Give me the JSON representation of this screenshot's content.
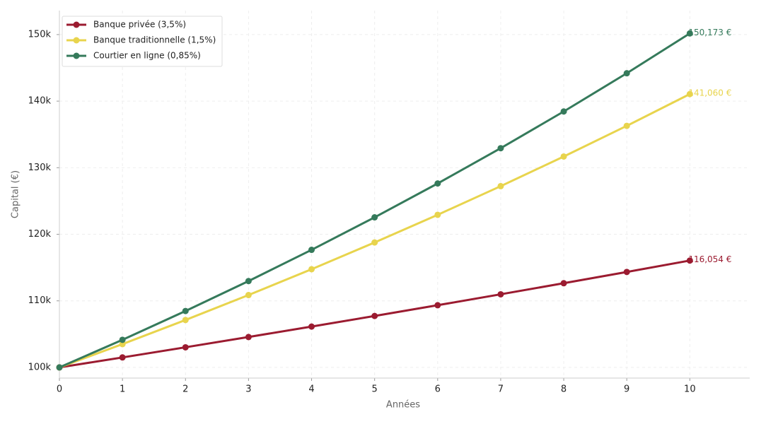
{
  "chart_data": {
    "type": "line",
    "x_label": "Années",
    "y_label": "Capital (€)",
    "x": [
      0,
      1,
      2,
      3,
      4,
      5,
      6,
      7,
      8,
      9,
      10
    ],
    "series": [
      {
        "name": "Banque privée (3,5%)",
        "color": "#9b1b30",
        "values": [
          100000,
          101500,
          103023,
          104568,
          106136,
          107728,
          109344,
          110984,
          112649,
          114339,
          116054
        ],
        "value_labels": [
          null,
          null,
          null,
          null,
          null,
          null,
          null,
          null,
          null,
          null,
          "116,054 €"
        ]
      },
      {
        "name": "Banque traditionnelle (1,5%)",
        "color": "#e8d44d",
        "values": [
          100000,
          103500,
          107123,
          110872,
          114752,
          118769,
          122926,
          127228,
          131681,
          136290,
          141060
        ],
        "value_labels": [
          null,
          null,
          null,
          null,
          null,
          null,
          null,
          null,
          null,
          null,
          "141,060 €"
        ]
      },
      {
        "name": "Courtier en ligne (0,85%)",
        "color": "#357a5b",
        "values": [
          100000,
          104150,
          108472,
          112974,
          117663,
          122546,
          127632,
          132929,
          138446,
          144191,
          150173
        ],
        "value_labels": [
          null,
          null,
          null,
          null,
          null,
          null,
          null,
          null,
          null,
          null,
          "150,173 €"
        ]
      }
    ],
    "xlim": [
      0,
      10.95
    ],
    "xticks": [
      0,
      1,
      2,
      3,
      4,
      5,
      6,
      7,
      8,
      9,
      10
    ],
    "ylim": [
      98400,
      153600
    ],
    "yticks": [
      {
        "value": 100000,
        "label": "100k"
      },
      {
        "value": 110000,
        "label": "110k"
      },
      {
        "value": 120000,
        "label": "120k"
      },
      {
        "value": 130000,
        "label": "130k"
      },
      {
        "value": 140000,
        "label": "140k"
      },
      {
        "value": 150000,
        "label": "150k"
      }
    ],
    "grid": true,
    "legend": "upper left"
  }
}
